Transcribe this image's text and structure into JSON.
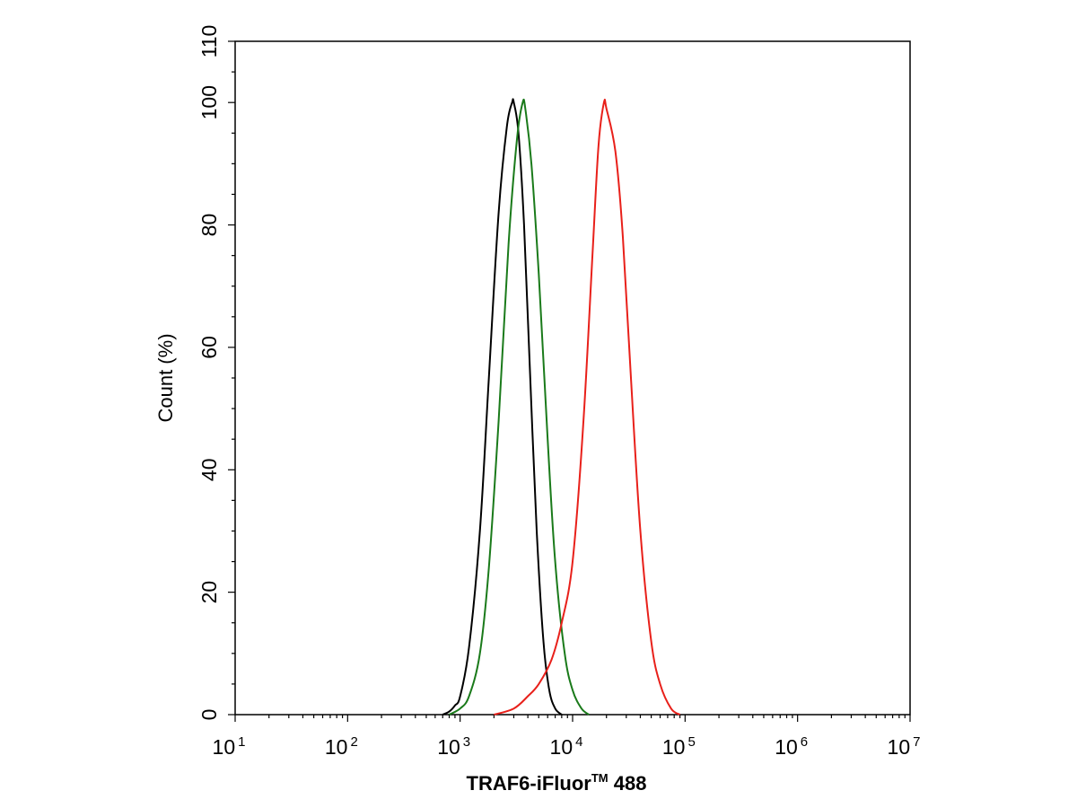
{
  "chart_data": {
    "type": "line",
    "xscale": "log",
    "xlim": [
      10,
      10000000
    ],
    "ylim": [
      0,
      110
    ],
    "grid": false,
    "ylabel": "Count  (%)",
    "xlabel": {
      "main": "TRAF6-iFluor",
      "sup": "TM",
      "tail": " 488"
    },
    "x_ticks": [
      {
        "base": "10",
        "exp": "1",
        "value": 10
      },
      {
        "base": "10",
        "exp": "2",
        "value": 100
      },
      {
        "base": "10",
        "exp": "3",
        "value": 1000
      },
      {
        "base": "10",
        "exp": "4",
        "value": 10000
      },
      {
        "base": "10",
        "exp": "5",
        "value": 100000
      },
      {
        "base": "10",
        "exp": "6",
        "value": 1000000
      },
      {
        "base": "10",
        "exp": "7",
        "value": 10000000
      }
    ],
    "y_ticks": [
      0,
      20,
      40,
      60,
      80,
      100,
      110
    ],
    "series": [
      {
        "color": "#000000",
        "x": [
          700,
          800,
          900,
          1000,
          1200,
          1500,
          1800,
          2200,
          2600,
          2900,
          3000,
          3300,
          3700,
          4200,
          4800,
          5500,
          6200,
          7000,
          8000
        ],
        "y": [
          0,
          0.5,
          1.5,
          3,
          11,
          30,
          55,
          82,
          96,
          100,
          100,
          95,
          80,
          55,
          30,
          12,
          4,
          1,
          0
        ]
      },
      {
        "color": "#1a7a1a",
        "x": [
          800,
          1000,
          1200,
          1500,
          1800,
          2200,
          2700,
          3200,
          3600,
          3800,
          4300,
          5000,
          6000,
          7000,
          8500,
          10000,
          12000,
          14000
        ],
        "y": [
          0,
          1,
          3,
          10,
          24,
          48,
          77,
          94,
          100,
          99,
          90,
          72,
          45,
          25,
          10,
          4,
          1,
          0
        ]
      },
      {
        "color": "#e8201a",
        "x": [
          2000,
          3000,
          4000,
          5000,
          6500,
          8000,
          10000,
          12500,
          15000,
          17000,
          19000,
          20000,
          24000,
          28000,
          33000,
          40000,
          50000,
          60000,
          75000,
          90000
        ],
        "y": [
          0,
          1,
          3,
          5,
          9,
          15,
          25,
          48,
          75,
          93,
          100,
          99,
          92,
          78,
          55,
          30,
          12,
          5,
          1,
          0
        ]
      }
    ]
  }
}
